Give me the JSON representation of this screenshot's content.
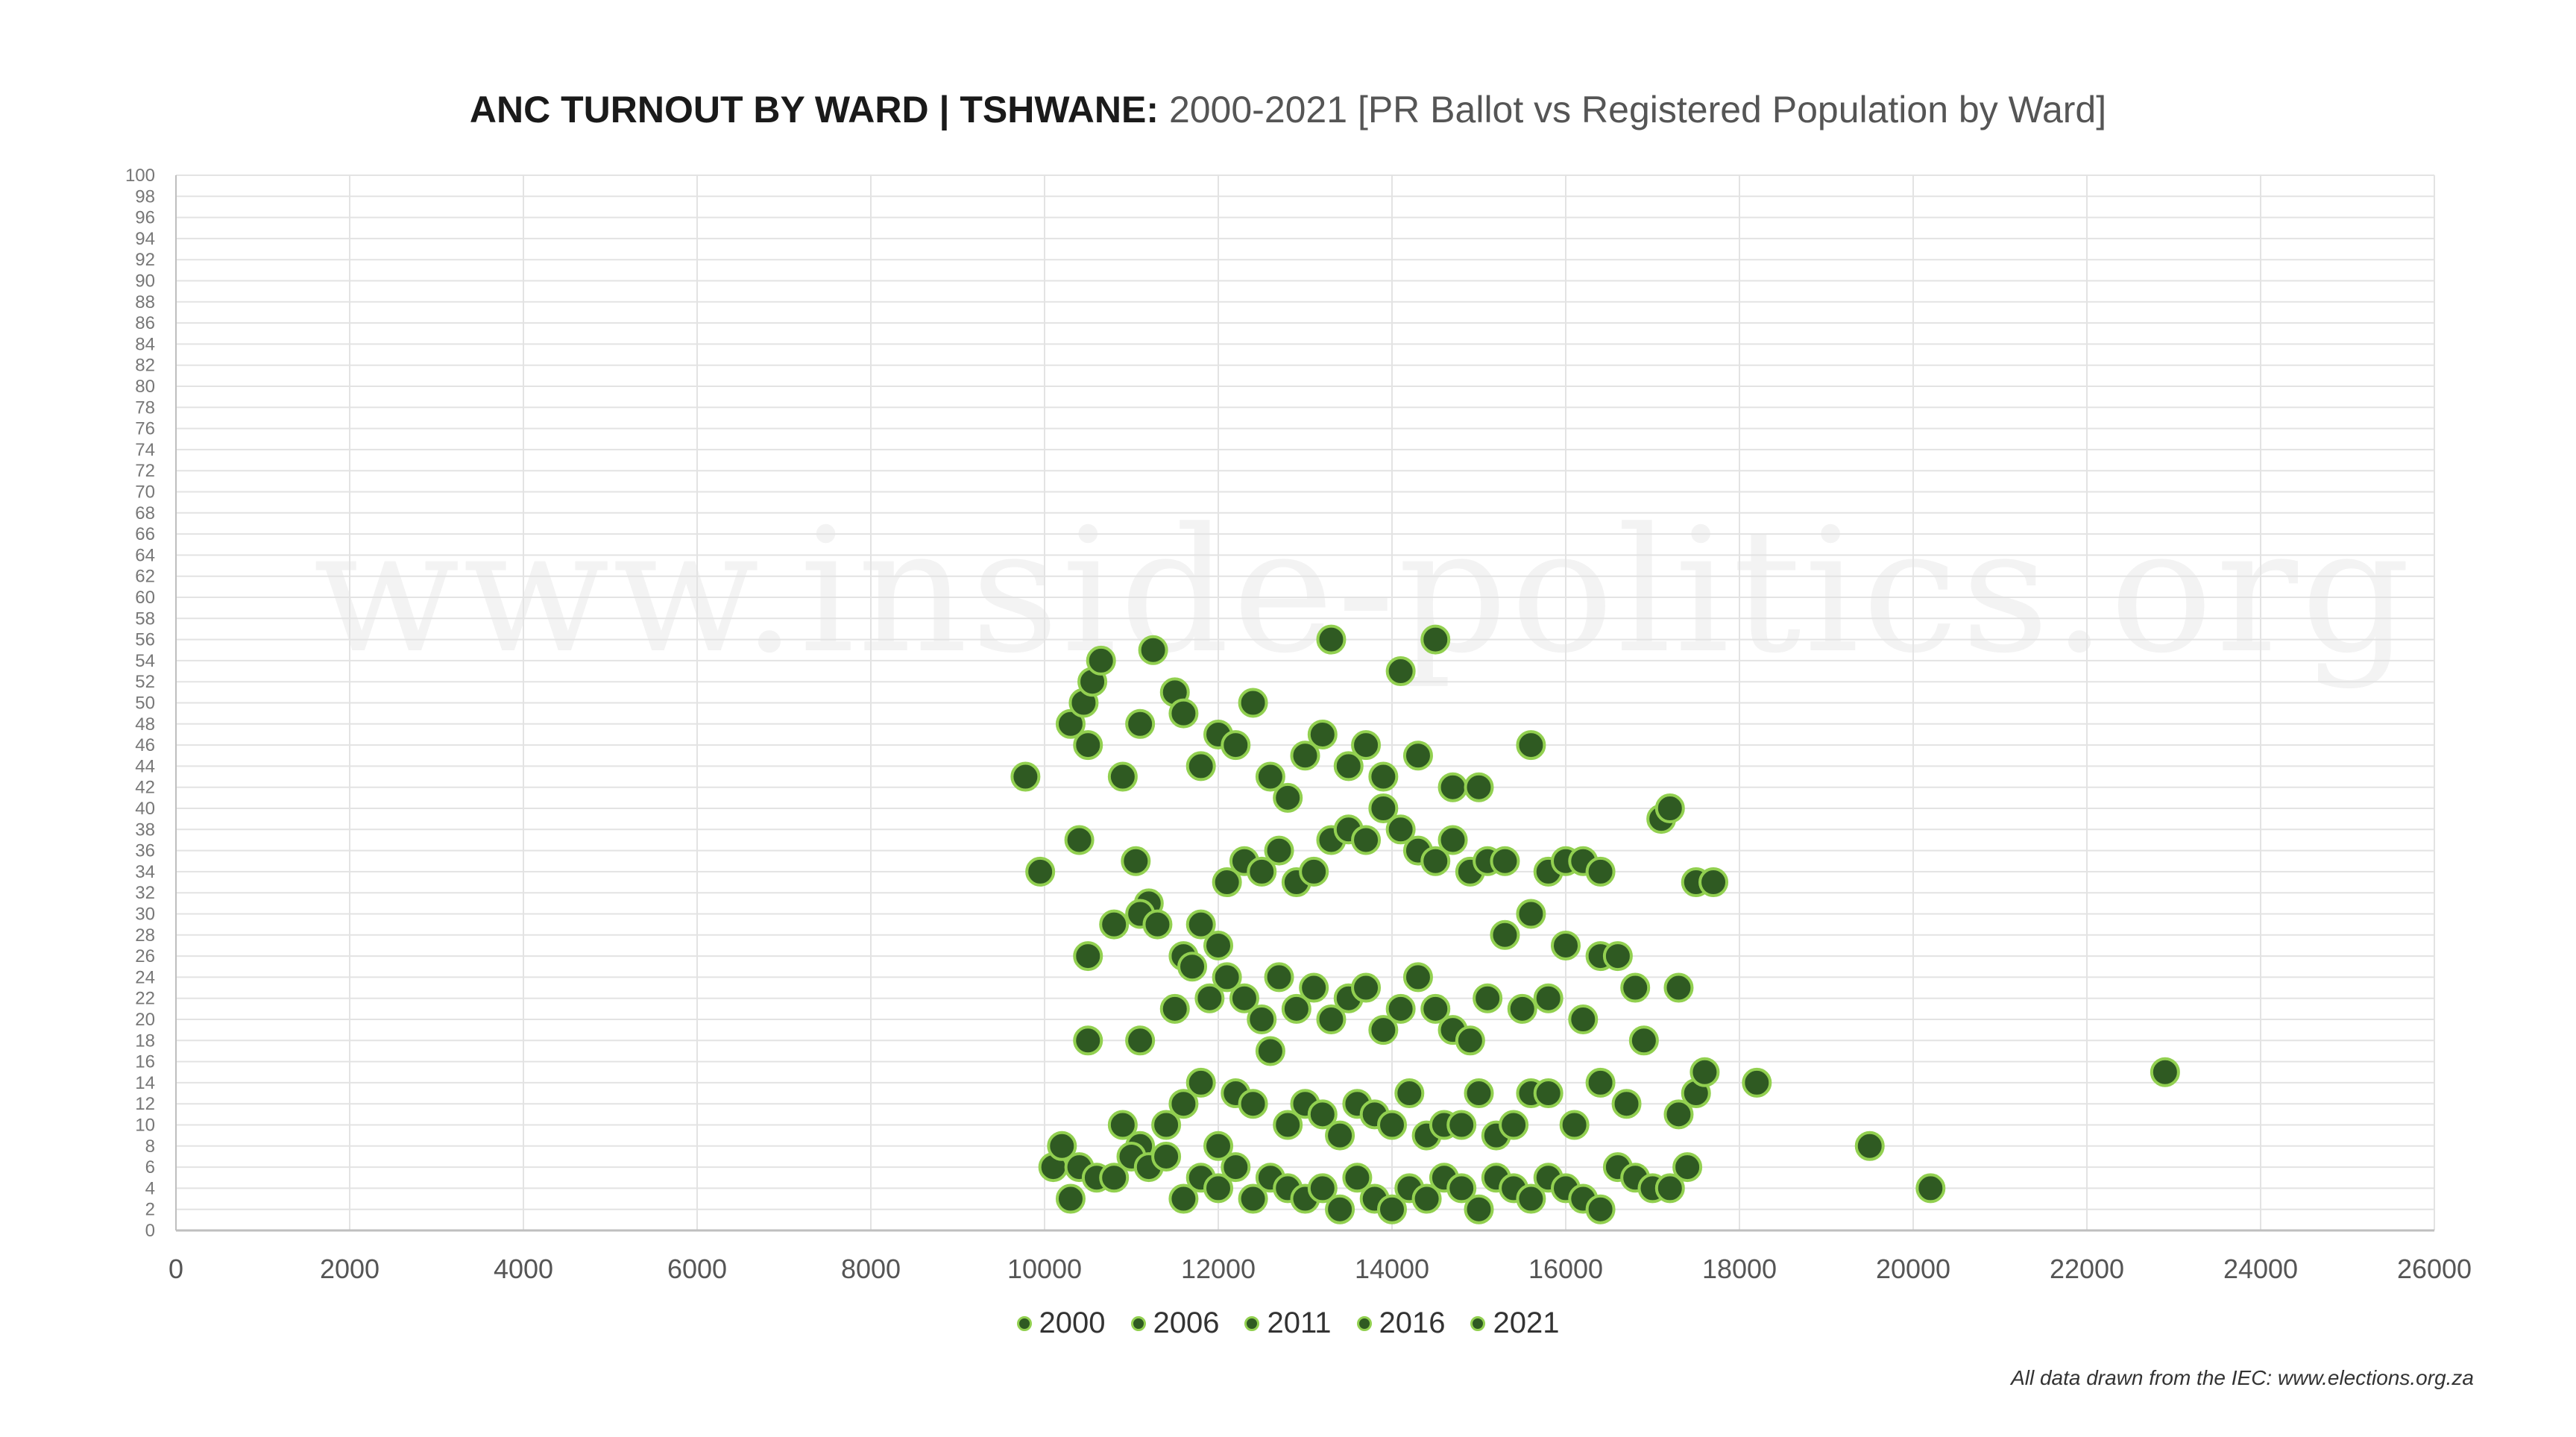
{
  "title": {
    "bold": "ANC TURNOUT BY WARD | TSHWANE:",
    "rest": "2000-2021 [PR Ballot vs Registered Population by Ward]"
  },
  "watermark": "www.inside-politics.org",
  "footnote": "All data drawn from the IEC: www.elections.org.za",
  "colors": {
    "marker_fill": "#2f5a22",
    "marker_edge": "#92d050",
    "grid": "#e3e3e3",
    "axis": "#bfbfbf"
  },
  "chart_data": {
    "type": "scatter",
    "title": "ANC TURNOUT BY WARD | TSHWANE: 2000-2021 [PR Ballot vs Registered Population by Ward]",
    "xlabel": "",
    "ylabel": "",
    "xlim": [
      0,
      26000
    ],
    "ylim": [
      0,
      100
    ],
    "x_ticks": [
      "0",
      "2000",
      "4000",
      "6000",
      "8000",
      "10000",
      "12000",
      "14000",
      "16000",
      "18000",
      "20000",
      "22000",
      "24000",
      "26000"
    ],
    "y_ticks": [
      "0",
      "2",
      "4",
      "6",
      "8",
      "10",
      "12",
      "14",
      "16",
      "18",
      "20",
      "22",
      "24",
      "26",
      "28",
      "30",
      "32",
      "34",
      "36",
      "38",
      "40",
      "42",
      "44",
      "46",
      "48",
      "50",
      "52",
      "54",
      "56",
      "58",
      "60",
      "62",
      "64",
      "66",
      "68",
      "70",
      "72",
      "74",
      "76",
      "78",
      "80",
      "82",
      "84",
      "86",
      "88",
      "90",
      "92",
      "94",
      "96",
      "98",
      "100"
    ],
    "grid": true,
    "legend_position": "bottom",
    "series": [
      {
        "name": "2000",
        "points": [
          [
            9780,
            43
          ],
          [
            9950,
            34
          ],
          [
            10300,
            48
          ],
          [
            10450,
            50
          ],
          [
            10550,
            52
          ],
          [
            10650,
            54
          ],
          [
            10400,
            37
          ],
          [
            10500,
            46
          ],
          [
            10900,
            43
          ],
          [
            11100,
            48
          ],
          [
            11250,
            55
          ],
          [
            11500,
            51
          ],
          [
            11600,
            49
          ],
          [
            11050,
            35
          ],
          [
            11200,
            31
          ],
          [
            11800,
            44
          ],
          [
            12000,
            47
          ],
          [
            12200,
            46
          ],
          [
            12400,
            50
          ],
          [
            12600,
            43
          ],
          [
            12800,
            41
          ],
          [
            13000,
            45
          ],
          [
            13200,
            47
          ],
          [
            13300,
            56
          ],
          [
            13500,
            44
          ],
          [
            13700,
            46
          ],
          [
            13900,
            43
          ],
          [
            14100,
            53
          ],
          [
            14300,
            45
          ],
          [
            14500,
            56
          ],
          [
            14700,
            42
          ],
          [
            15000,
            42
          ],
          [
            15600,
            46
          ]
        ]
      },
      {
        "name": "2006",
        "points": [
          [
            10500,
            26
          ],
          [
            10800,
            29
          ],
          [
            11100,
            30
          ],
          [
            11300,
            29
          ],
          [
            11600,
            26
          ],
          [
            11800,
            29
          ],
          [
            12000,
            27
          ],
          [
            12100,
            33
          ],
          [
            12300,
            35
          ],
          [
            12500,
            34
          ],
          [
            12700,
            36
          ],
          [
            12900,
            33
          ],
          [
            13100,
            34
          ],
          [
            13300,
            37
          ],
          [
            13500,
            38
          ],
          [
            13700,
            37
          ],
          [
            13900,
            40
          ],
          [
            14100,
            38
          ],
          [
            14300,
            36
          ],
          [
            14500,
            35
          ],
          [
            14700,
            37
          ],
          [
            14900,
            34
          ],
          [
            15100,
            35
          ],
          [
            15300,
            35
          ],
          [
            15600,
            30
          ],
          [
            15800,
            34
          ],
          [
            16000,
            35
          ],
          [
            16200,
            35
          ],
          [
            16400,
            34
          ],
          [
            17100,
            39
          ],
          [
            17200,
            40
          ],
          [
            17500,
            33
          ],
          [
            17700,
            33
          ]
        ]
      },
      {
        "name": "2011",
        "points": [
          [
            10500,
            18
          ],
          [
            11100,
            18
          ],
          [
            11500,
            21
          ],
          [
            11700,
            25
          ],
          [
            11900,
            22
          ],
          [
            12100,
            24
          ],
          [
            12300,
            22
          ],
          [
            12500,
            20
          ],
          [
            12700,
            24
          ],
          [
            12900,
            21
          ],
          [
            13100,
            23
          ],
          [
            13300,
            20
          ],
          [
            13500,
            22
          ],
          [
            13700,
            23
          ],
          [
            13900,
            19
          ],
          [
            14100,
            21
          ],
          [
            14300,
            24
          ],
          [
            14500,
            21
          ],
          [
            14700,
            19
          ],
          [
            14900,
            18
          ],
          [
            15100,
            22
          ],
          [
            15300,
            28
          ],
          [
            15500,
            21
          ],
          [
            15800,
            22
          ],
          [
            16000,
            27
          ],
          [
            16200,
            20
          ],
          [
            16400,
            26
          ],
          [
            16600,
            26
          ],
          [
            16800,
            23
          ],
          [
            16900,
            18
          ],
          [
            17300,
            23
          ]
        ]
      },
      {
        "name": "2016",
        "points": [
          [
            10900,
            10
          ],
          [
            11100,
            8
          ],
          [
            11400,
            10
          ],
          [
            11600,
            12
          ],
          [
            11800,
            14
          ],
          [
            12000,
            8
          ],
          [
            12200,
            13
          ],
          [
            12400,
            12
          ],
          [
            12600,
            17
          ],
          [
            12800,
            10
          ],
          [
            13000,
            12
          ],
          [
            13200,
            11
          ],
          [
            13400,
            9
          ],
          [
            13600,
            12
          ],
          [
            13800,
            11
          ],
          [
            14000,
            10
          ],
          [
            14200,
            13
          ],
          [
            14400,
            9
          ],
          [
            14600,
            10
          ],
          [
            14800,
            10
          ],
          [
            15000,
            13
          ],
          [
            15200,
            9
          ],
          [
            15400,
            10
          ],
          [
            15600,
            13
          ],
          [
            15800,
            13
          ],
          [
            16100,
            10
          ],
          [
            16400,
            14
          ],
          [
            16700,
            12
          ],
          [
            17300,
            11
          ],
          [
            17500,
            13
          ],
          [
            17600,
            15
          ],
          [
            18200,
            14
          ],
          [
            22900,
            15
          ]
        ]
      },
      {
        "name": "2021",
        "points": [
          [
            10100,
            6
          ],
          [
            10200,
            8
          ],
          [
            10300,
            3
          ],
          [
            10400,
            6
          ],
          [
            10600,
            5
          ],
          [
            10800,
            5
          ],
          [
            11000,
            7
          ],
          [
            11200,
            6
          ],
          [
            11400,
            7
          ],
          [
            11600,
            3
          ],
          [
            11800,
            5
          ],
          [
            12000,
            4
          ],
          [
            12200,
            6
          ],
          [
            12400,
            3
          ],
          [
            12600,
            5
          ],
          [
            12800,
            4
          ],
          [
            13000,
            3
          ],
          [
            13200,
            4
          ],
          [
            13400,
            2
          ],
          [
            13600,
            5
          ],
          [
            13800,
            3
          ],
          [
            14000,
            2
          ],
          [
            14200,
            4
          ],
          [
            14400,
            3
          ],
          [
            14600,
            5
          ],
          [
            14800,
            4
          ],
          [
            15000,
            2
          ],
          [
            15200,
            5
          ],
          [
            15400,
            4
          ],
          [
            15600,
            3
          ],
          [
            15800,
            5
          ],
          [
            16000,
            4
          ],
          [
            16200,
            3
          ],
          [
            16400,
            2
          ],
          [
            16600,
            6
          ],
          [
            16800,
            5
          ],
          [
            17000,
            4
          ],
          [
            17200,
            4
          ],
          [
            17400,
            6
          ],
          [
            19500,
            8
          ],
          [
            20200,
            4
          ]
        ]
      }
    ]
  }
}
